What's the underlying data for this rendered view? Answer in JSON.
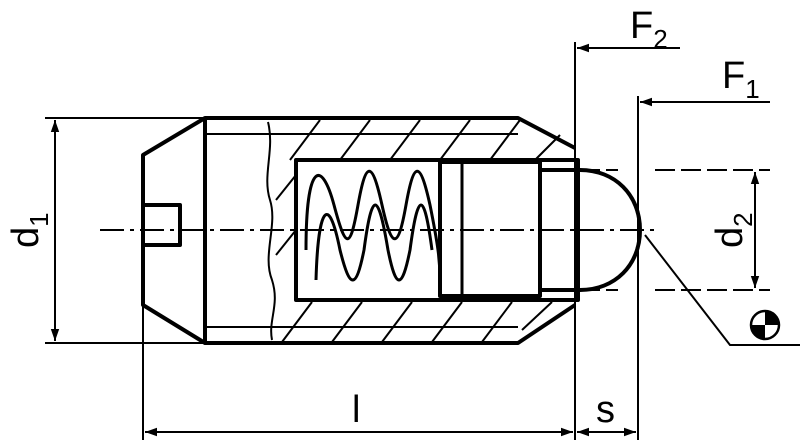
{
  "labels": {
    "d1": {
      "main": "d",
      "sub": "1"
    },
    "d2": {
      "main": "d",
      "sub": "2"
    },
    "F1": {
      "main": "F",
      "sub": "1"
    },
    "F2": {
      "main": "F",
      "sub": "2"
    },
    "l": "l",
    "s": "s"
  },
  "colors": {
    "ink": "#000000",
    "paper": "#ffffff"
  },
  "icons": [
    "center-of-mass-symbol",
    "dimension-arrow"
  ]
}
